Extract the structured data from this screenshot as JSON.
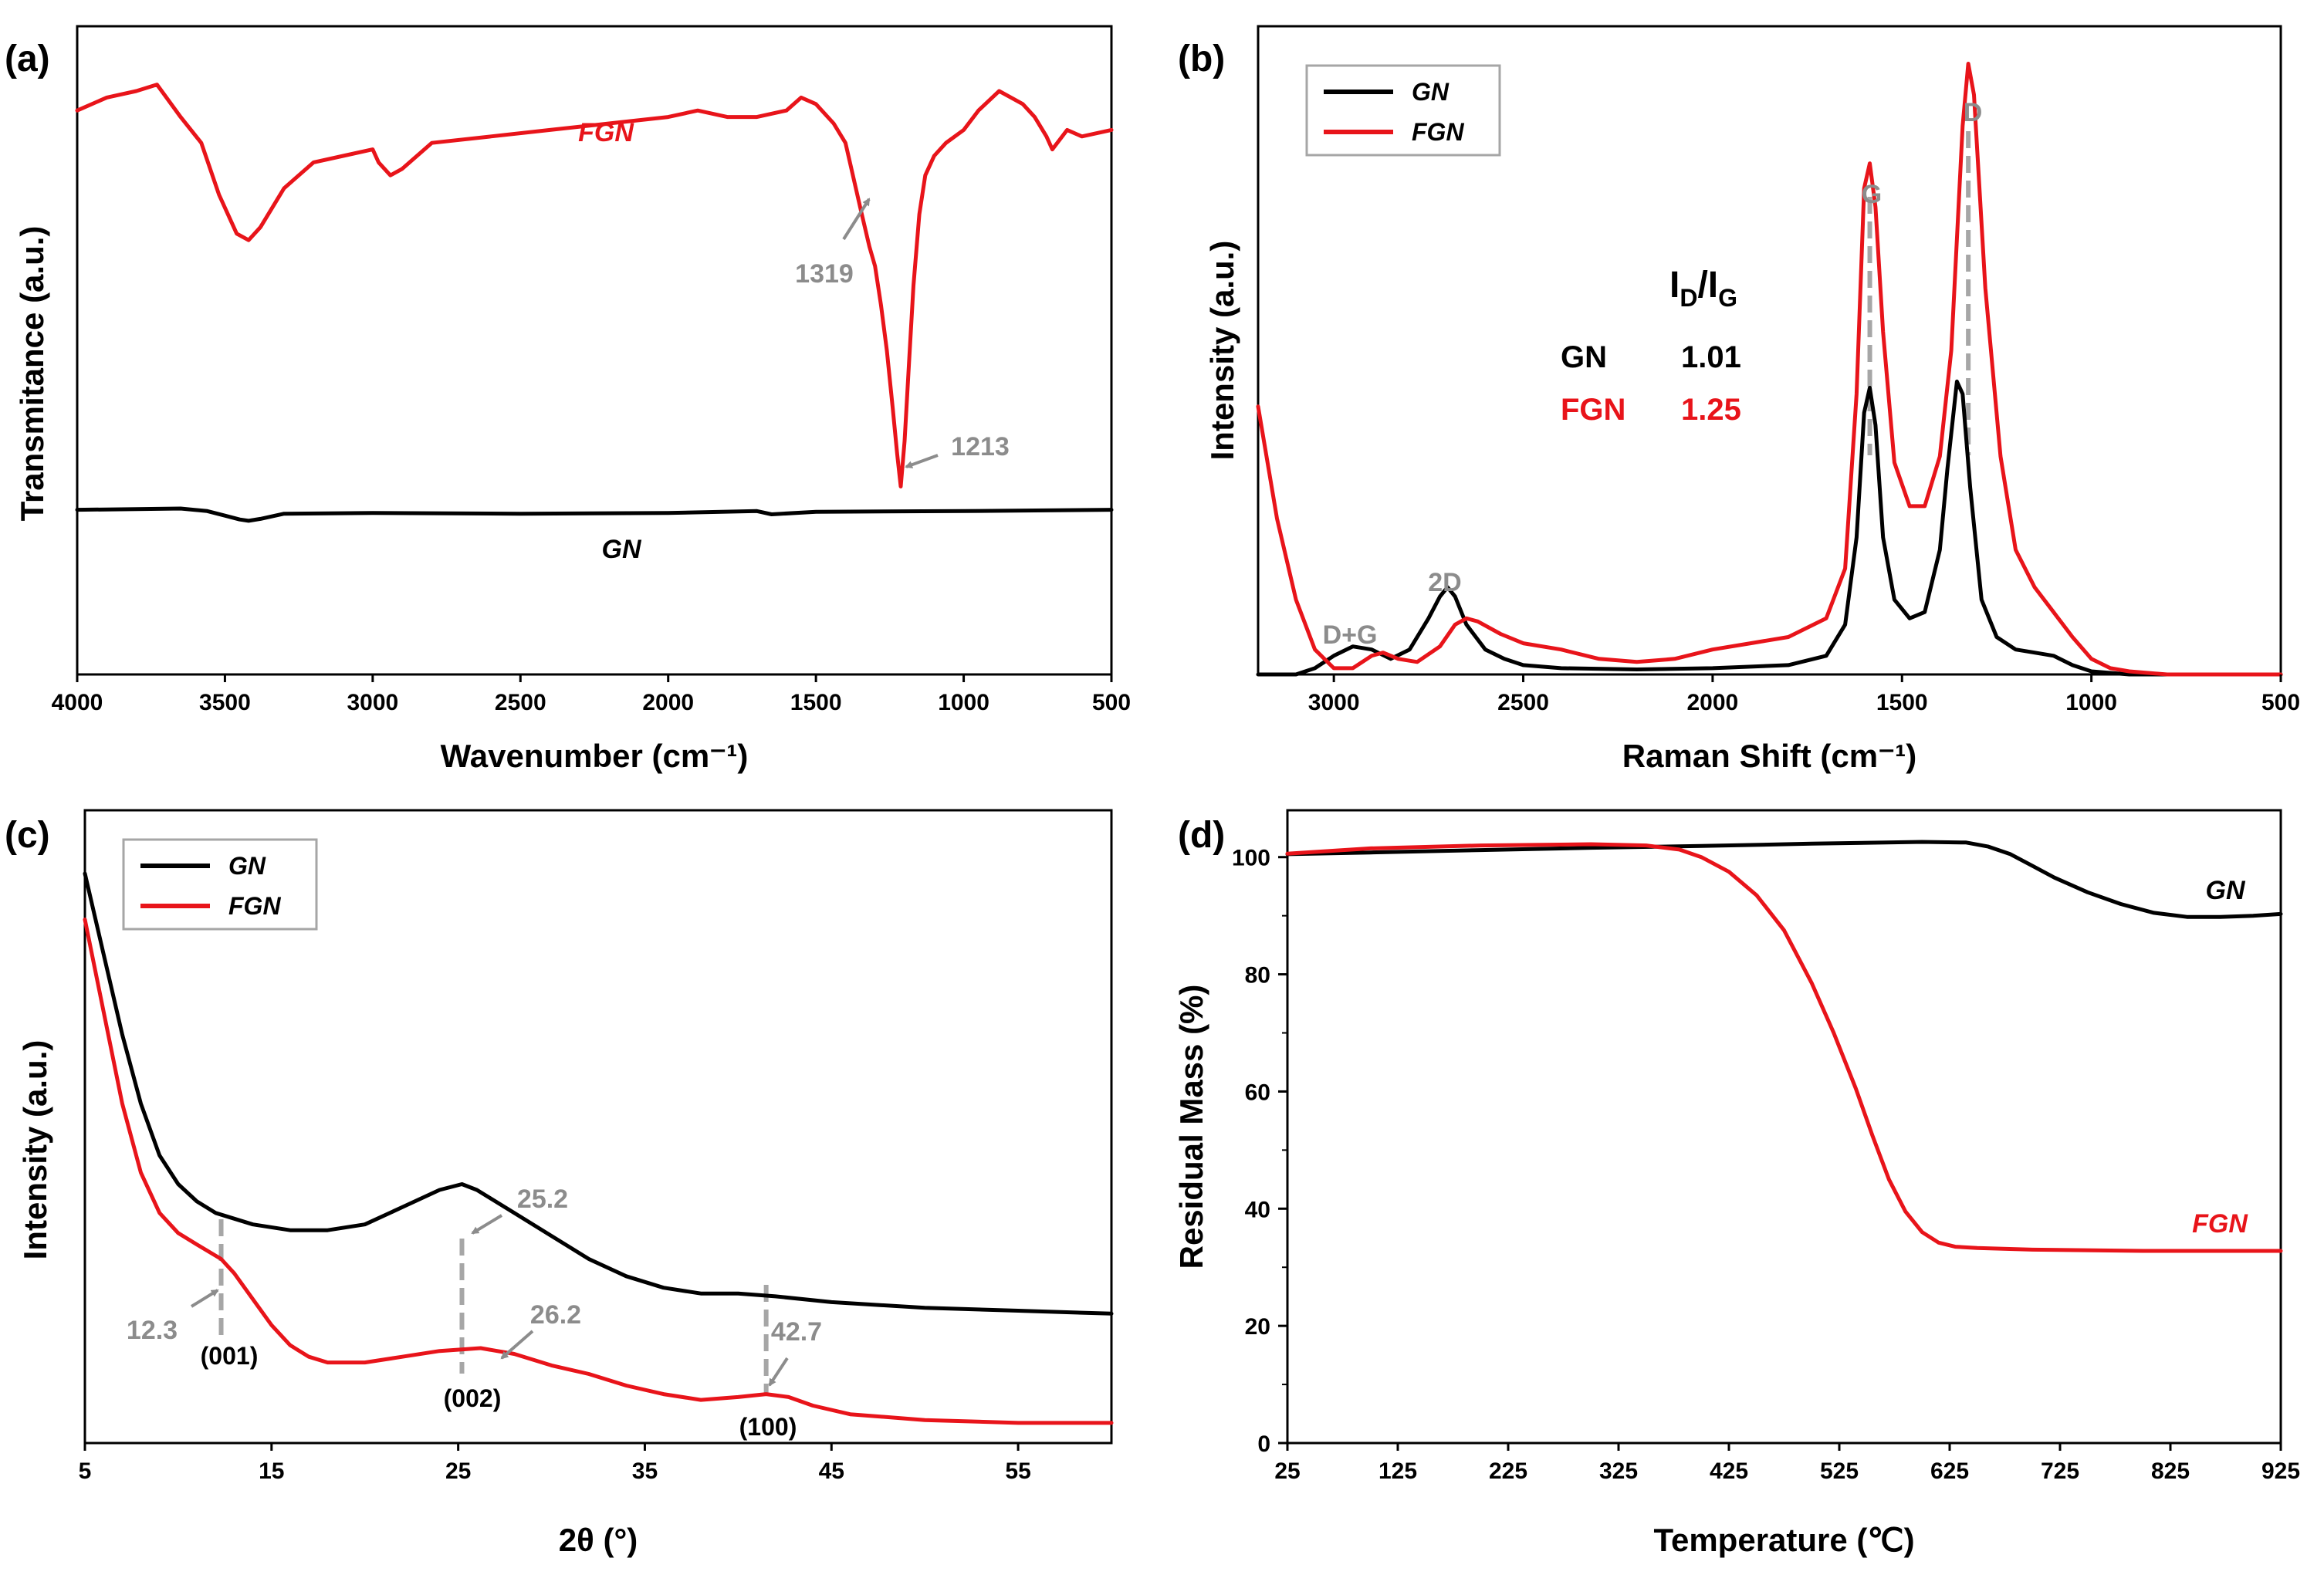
{
  "colors": {
    "GN": "#000000",
    "FGN": "#e8141a",
    "annotation": "#8c8c8c"
  },
  "chart_data": [
    {
      "panel": "(a)",
      "type": "line",
      "xlabel": "Wavenumber (cm⁻¹)",
      "ylabel": "Transmitance (a.u.)",
      "xlim": [
        4000,
        500
      ],
      "x_reversed": true,
      "y_ticks_shown": false,
      "xticks": [
        4000,
        3500,
        3000,
        2500,
        2000,
        1500,
        1000,
        500
      ],
      "series": [
        {
          "name": "FGN",
          "x": [
            4000,
            3900,
            3800,
            3730,
            3650,
            3580,
            3520,
            3460,
            3420,
            3380,
            3300,
            3200,
            3100,
            3000,
            2980,
            2940,
            2900,
            2800,
            2600,
            2400,
            2200,
            2000,
            1900,
            1800,
            1700,
            1600,
            1550,
            1500,
            1440,
            1400,
            1380,
            1350,
            1319,
            1300,
            1280,
            1260,
            1240,
            1225,
            1213,
            1200,
            1185,
            1170,
            1150,
            1130,
            1100,
            1060,
            1000,
            950,
            880,
            800,
            760,
            720,
            700,
            650,
            600,
            500
          ],
          "y": [
            0.87,
            0.89,
            0.9,
            0.91,
            0.86,
            0.82,
            0.74,
            0.68,
            0.67,
            0.69,
            0.75,
            0.79,
            0.8,
            0.81,
            0.79,
            0.77,
            0.78,
            0.82,
            0.83,
            0.84,
            0.85,
            0.86,
            0.87,
            0.86,
            0.86,
            0.87,
            0.89,
            0.88,
            0.85,
            0.82,
            0.78,
            0.72,
            0.66,
            0.63,
            0.57,
            0.5,
            0.41,
            0.34,
            0.29,
            0.36,
            0.48,
            0.6,
            0.71,
            0.77,
            0.8,
            0.82,
            0.84,
            0.87,
            0.9,
            0.88,
            0.86,
            0.83,
            0.81,
            0.84,
            0.83,
            0.84
          ]
        },
        {
          "name": "GN",
          "x": [
            4000,
            3800,
            3650,
            3560,
            3500,
            3450,
            3420,
            3380,
            3300,
            3000,
            2500,
            2000,
            1700,
            1650,
            1500,
            1000,
            500
          ],
          "y": [
            0.254,
            0.255,
            0.256,
            0.252,
            0.245,
            0.239,
            0.237,
            0.24,
            0.248,
            0.249,
            0.248,
            0.249,
            0.252,
            0.247,
            0.251,
            0.252,
            0.254
          ]
        }
      ],
      "annotations": [
        {
          "text": "1319",
          "x": 1319
        },
        {
          "text": "1213",
          "x": 1213
        }
      ],
      "series_labels": [
        "FGN",
        "GN"
      ]
    },
    {
      "panel": "(b)",
      "type": "line",
      "xlabel": "Raman Shift (cm⁻¹)",
      "ylabel": "Intensity (a.u.)",
      "xlim": [
        3200,
        500
      ],
      "x_reversed": true,
      "y_ticks_shown": false,
      "xticks": [
        3000,
        2500,
        2000,
        1500,
        1000,
        500
      ],
      "legend": {
        "placement": "top-left",
        "entries": [
          "GN",
          "FGN"
        ]
      },
      "series": [
        {
          "name": "GN",
          "x": [
            3200,
            3100,
            3050,
            3000,
            2950,
            2900,
            2850,
            2800,
            2750,
            2720,
            2700,
            2680,
            2650,
            2600,
            2550,
            2500,
            2400,
            2200,
            2000,
            1800,
            1700,
            1650,
            1620,
            1600,
            1585,
            1570,
            1550,
            1520,
            1480,
            1440,
            1400,
            1380,
            1355,
            1340,
            1320,
            1290,
            1250,
            1200,
            1150,
            1100,
            1050,
            1000,
            900,
            700,
            500
          ],
          "y": [
            0.0,
            0.0,
            0.01,
            0.03,
            0.045,
            0.04,
            0.025,
            0.04,
            0.09,
            0.125,
            0.14,
            0.125,
            0.08,
            0.04,
            0.025,
            0.015,
            0.01,
            0.008,
            0.01,
            0.015,
            0.03,
            0.08,
            0.22,
            0.42,
            0.46,
            0.4,
            0.22,
            0.12,
            0.09,
            0.1,
            0.2,
            0.33,
            0.47,
            0.45,
            0.3,
            0.12,
            0.06,
            0.04,
            0.035,
            0.03,
            0.015,
            0.005,
            0.0,
            0.0,
            0.0
          ]
        },
        {
          "name": "FGN",
          "x": [
            3200,
            3150,
            3100,
            3050,
            3000,
            2950,
            2900,
            2870,
            2830,
            2780,
            2720,
            2680,
            2650,
            2620,
            2560,
            2500,
            2400,
            2300,
            2200,
            2100,
            2000,
            1900,
            1800,
            1700,
            1650,
            1620,
            1600,
            1585,
            1570,
            1550,
            1520,
            1480,
            1440,
            1400,
            1370,
            1340,
            1325,
            1310,
            1280,
            1240,
            1200,
            1150,
            1100,
            1050,
            1000,
            950,
            900,
            800,
            700,
            500
          ],
          "y": [
            0.43,
            0.25,
            0.12,
            0.04,
            0.01,
            0.01,
            0.03,
            0.035,
            0.025,
            0.02,
            0.045,
            0.08,
            0.09,
            0.085,
            0.065,
            0.05,
            0.04,
            0.025,
            0.02,
            0.025,
            0.04,
            0.05,
            0.06,
            0.09,
            0.17,
            0.45,
            0.78,
            0.82,
            0.75,
            0.55,
            0.34,
            0.27,
            0.27,
            0.35,
            0.52,
            0.88,
            0.98,
            0.93,
            0.62,
            0.35,
            0.2,
            0.14,
            0.1,
            0.06,
            0.025,
            0.01,
            0.005,
            0.0,
            0.0,
            0.0
          ]
        }
      ],
      "peak_labels": [
        {
          "text": "D+G",
          "x": 2930
        },
        {
          "text": "2D",
          "x": 2700
        },
        {
          "text": "G",
          "x": 1585
        },
        {
          "text": "D",
          "x": 1325
        }
      ],
      "ratio_table": {
        "title": "I",
        "title_sub1": "D",
        "title_sep": "/I",
        "title_sub2": "G",
        "rows": [
          {
            "label": "GN",
            "value": "1.01"
          },
          {
            "label": "FGN",
            "value": "1.25"
          }
        ]
      }
    },
    {
      "panel": "(c)",
      "type": "line",
      "xlabel": "2θ (°)",
      "ylabel": "Intensity (a.u.)",
      "xlim": [
        5,
        60
      ],
      "y_ticks_shown": false,
      "xticks": [
        5,
        15,
        25,
        35,
        45,
        55
      ],
      "legend": {
        "placement": "top-left",
        "entries": [
          "GN",
          "FGN"
        ]
      },
      "series": [
        {
          "name": "GN",
          "x": [
            5,
            6,
            7,
            8,
            9,
            10,
            11,
            12,
            14,
            16,
            18,
            20,
            22,
            24,
            25.2,
            26,
            28,
            30,
            32,
            34,
            36,
            38,
            40,
            42,
            45,
            50,
            55,
            60
          ],
          "y": [
            0.96,
            0.82,
            0.68,
            0.56,
            0.47,
            0.42,
            0.39,
            0.37,
            0.35,
            0.34,
            0.34,
            0.35,
            0.38,
            0.41,
            0.42,
            0.41,
            0.37,
            0.33,
            0.29,
            0.26,
            0.24,
            0.23,
            0.23,
            0.225,
            0.215,
            0.205,
            0.2,
            0.195
          ]
        },
        {
          "name": "FGN",
          "x": [
            5,
            6,
            7,
            8,
            9,
            10,
            11,
            12.3,
            13,
            14,
            15,
            16,
            17,
            18,
            20,
            22,
            24,
            26.2,
            28,
            30,
            32,
            34,
            36,
            38,
            40,
            41.5,
            42.7,
            44,
            46,
            50,
            55,
            60
          ],
          "y": [
            0.88,
            0.72,
            0.56,
            0.44,
            0.37,
            0.335,
            0.315,
            0.29,
            0.265,
            0.22,
            0.175,
            0.14,
            0.12,
            0.11,
            0.11,
            0.12,
            0.13,
            0.135,
            0.125,
            0.105,
            0.09,
            0.07,
            0.055,
            0.045,
            0.05,
            0.055,
            0.05,
            0.035,
            0.02,
            0.01,
            0.005,
            0.005
          ]
        }
      ],
      "annotations": [
        {
          "text": "12.3",
          "x": 12.3,
          "plane": "(001)"
        },
        {
          "text": "25.2",
          "x": 25.2,
          "plane": "(002)"
        },
        {
          "text": "26.2",
          "x": 26.2
        },
        {
          "text": "42.7",
          "x": 42.7,
          "plane": "(100)"
        }
      ]
    },
    {
      "panel": "(d)",
      "type": "line",
      "xlabel": "Temperature (℃)",
      "ylabel": "Residual Mass (%)",
      "xlim": [
        25,
        925
      ],
      "ylim": [
        0,
        108
      ],
      "xticks": [
        25,
        125,
        225,
        325,
        425,
        525,
        625,
        725,
        825,
        925
      ],
      "yticks": [
        0,
        20,
        40,
        60,
        80,
        100
      ],
      "series": [
        {
          "name": "GN",
          "x": [
            25,
            100,
            200,
            300,
            400,
            500,
            600,
            640,
            660,
            680,
            700,
            720,
            750,
            780,
            810,
            840,
            870,
            900,
            925
          ],
          "y": [
            100.5,
            100.8,
            101.2,
            101.6,
            101.9,
            102.3,
            102.6,
            102.5,
            101.8,
            100.5,
            98.5,
            96.5,
            94.0,
            92.0,
            90.5,
            89.8,
            89.8,
            90.0,
            90.3
          ]
        },
        {
          "name": "FGN",
          "x": [
            25,
            100,
            200,
            300,
            350,
            380,
            400,
            425,
            450,
            475,
            500,
            520,
            540,
            555,
            570,
            585,
            600,
            615,
            630,
            650,
            700,
            800,
            925
          ],
          "y": [
            100.6,
            101.5,
            102.0,
            102.2,
            102.0,
            101.3,
            100.0,
            97.5,
            93.5,
            87.5,
            78.5,
            70.0,
            60.5,
            52.5,
            45.0,
            39.5,
            36.0,
            34.2,
            33.5,
            33.3,
            33.0,
            32.8,
            32.8
          ]
        }
      ],
      "series_labels": [
        "GN",
        "FGN"
      ]
    }
  ]
}
